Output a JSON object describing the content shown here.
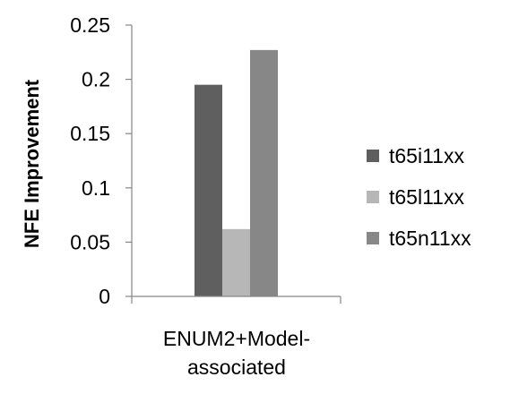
{
  "chart_data": {
    "type": "bar",
    "title": "",
    "xlabel": "",
    "ylabel": "NFE Improvement",
    "categories": [
      "ENUM2+Model-associated"
    ],
    "category_lines": [
      "ENUM2+Model-",
      "associated"
    ],
    "series": [
      {
        "name": "t65i11xx",
        "values": [
          0.195
        ],
        "color": "#5f5f5f"
      },
      {
        "name": "t65l11xx",
        "values": [
          0.062
        ],
        "color": "#b7b7b7"
      },
      {
        "name": "t65n11xx",
        "values": [
          0.227
        ],
        "color": "#878787"
      }
    ],
    "ylim": [
      0,
      0.25
    ],
    "yticks": [
      0,
      0.05,
      0.1,
      0.15,
      0.2,
      0.25
    ],
    "ytick_labels": [
      "0",
      "0.05",
      "0.1",
      "0.15",
      "0.2",
      "0.25"
    ],
    "grid": false,
    "legend_position": "right"
  }
}
